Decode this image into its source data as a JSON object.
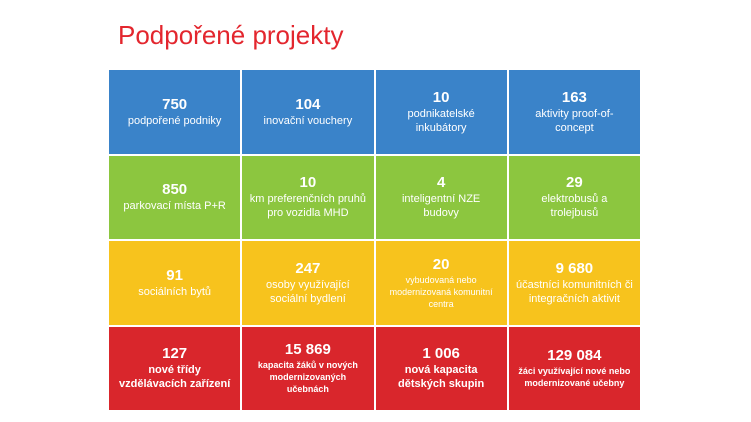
{
  "title": "Podpořené projekty",
  "colors": {
    "title": "#e3262e",
    "row_blue": "#3a83c9",
    "row_green": "#8cc63f",
    "row_yellow": "#f7c31d",
    "row_red": "#d9262c"
  },
  "rows": [
    [
      {
        "value": "750",
        "label": "podpořené podniky"
      },
      {
        "value": "104",
        "label": "inovační vouchery"
      },
      {
        "value": "10",
        "label": "podnikatelské inkubátory"
      },
      {
        "value": "163",
        "label": "aktivity proof-of-concept"
      }
    ],
    [
      {
        "value": "850",
        "label": "parkovací místa P+R"
      },
      {
        "value": "10",
        "label": "km preferenčních pruhů pro vozidla MHD"
      },
      {
        "value": "4",
        "label": "inteligentní NZE budovy"
      },
      {
        "value": "29",
        "label": "elektrobusů a trolejbusů"
      }
    ],
    [
      {
        "value": "91",
        "label": "sociálních bytů"
      },
      {
        "value": "247",
        "label": "osoby využívající sociální bydlení"
      },
      {
        "value": "20",
        "label": "vybudovaná nebo modernizovaná komunitní centra"
      },
      {
        "value": "9 680",
        "label": "účastníci komunitních či integračních aktivit"
      }
    ],
    [
      {
        "value": "127",
        "label": "nové třídy vzdělávacích zařízení"
      },
      {
        "value": "15 869",
        "label": "kapacita žáků v nových modernizovaných učebnách"
      },
      {
        "value": "1 006",
        "label": "nová kapacita dětských skupin"
      },
      {
        "value": "129 084",
        "label": "žáci využívající nové nebo modernizované učebny"
      }
    ]
  ]
}
